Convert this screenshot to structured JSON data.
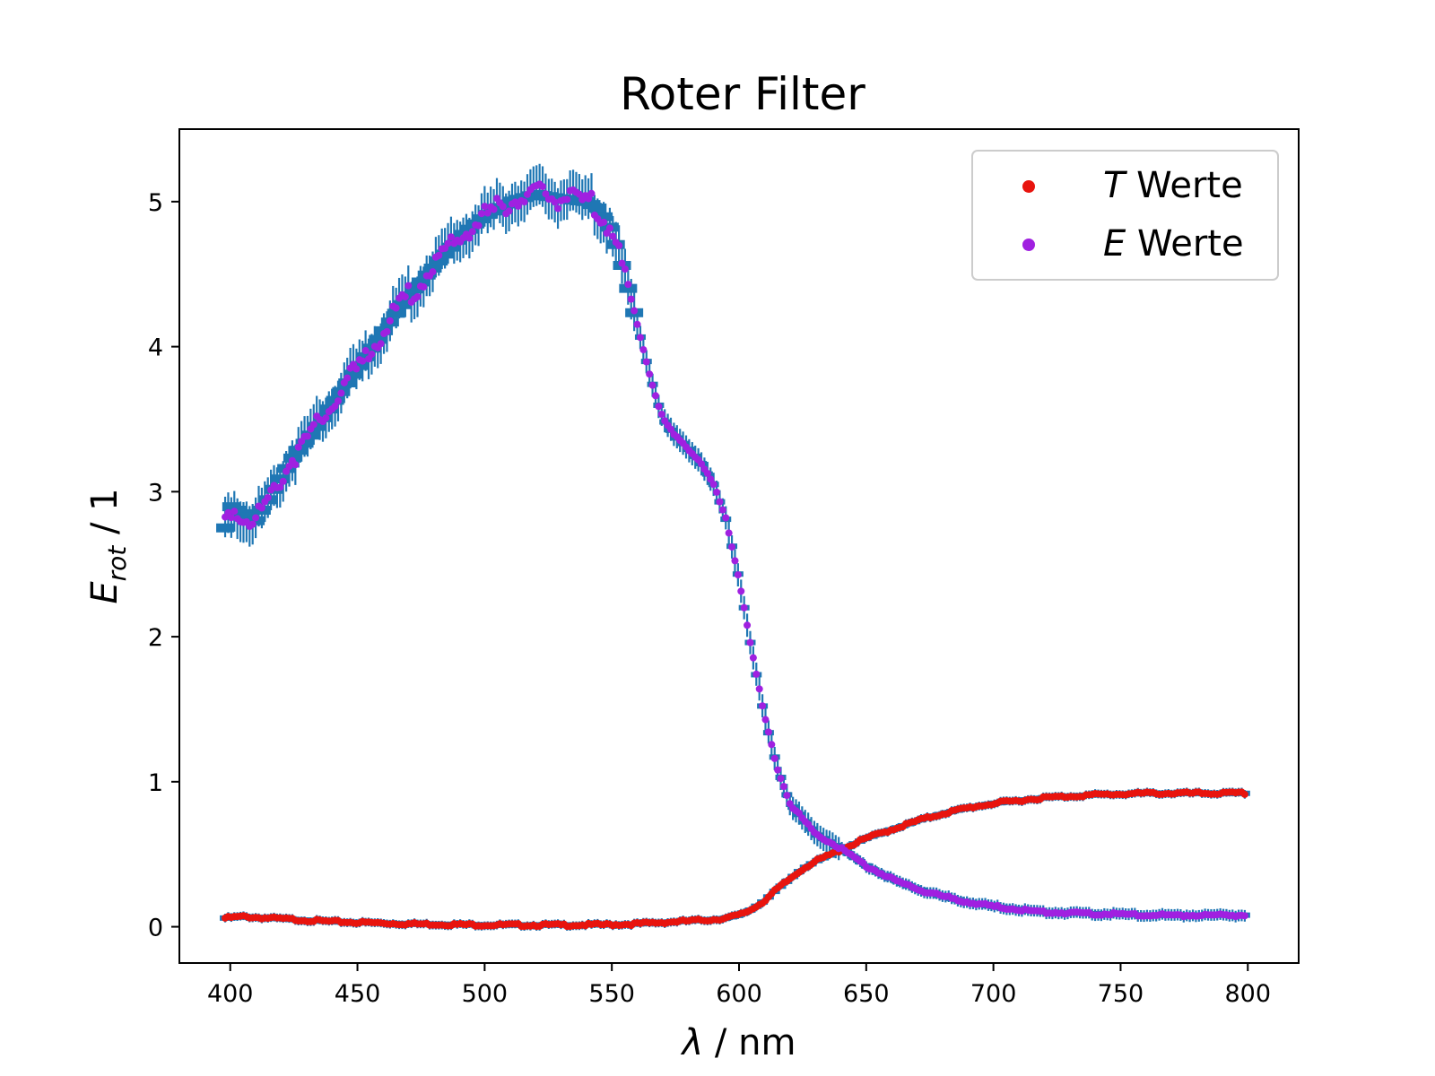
{
  "chart_data": {
    "type": "scatter",
    "title": "Roter Filter",
    "xlabel_symbol": "λ",
    "xlabel_unit": " / nm",
    "ylabel_symbol": "E",
    "ylabel_sub": "rot",
    "ylabel_unit": " / 1",
    "xlim": [
      380,
      820
    ],
    "ylim": [
      -0.25,
      5.5
    ],
    "xticks": [
      400,
      450,
      500,
      550,
      600,
      650,
      700,
      750,
      800
    ],
    "yticks": [
      0,
      1,
      2,
      3,
      4,
      5
    ],
    "grid": false,
    "legend_position": "top-right",
    "errorbar_color": "#1f77b4",
    "series": [
      {
        "name": "T Werte",
        "legend_symbol": "T",
        "legend_text": " Werte",
        "color": "#e8140e",
        "x": [
          398,
          405,
          410,
          420,
          430,
          440,
          450,
          460,
          470,
          480,
          490,
          500,
          510,
          520,
          530,
          540,
          550,
          560,
          570,
          580,
          590,
          595,
          600,
          605,
          610,
          615,
          620,
          625,
          630,
          640,
          650,
          660,
          670,
          680,
          690,
          700,
          710,
          720,
          730,
          740,
          750,
          760,
          770,
          780,
          790,
          800
        ],
        "y": [
          0.06,
          0.07,
          0.065,
          0.055,
          0.045,
          0.035,
          0.03,
          0.025,
          0.02,
          0.018,
          0.015,
          0.013,
          0.012,
          0.012,
          0.012,
          0.013,
          0.015,
          0.02,
          0.03,
          0.04,
          0.05,
          0.06,
          0.08,
          0.12,
          0.18,
          0.26,
          0.33,
          0.4,
          0.45,
          0.53,
          0.61,
          0.67,
          0.73,
          0.78,
          0.82,
          0.85,
          0.87,
          0.89,
          0.9,
          0.91,
          0.915,
          0.92,
          0.92,
          0.92,
          0.92,
          0.92
        ]
      },
      {
        "name": "E Werte",
        "legend_symbol": "E",
        "legend_text": " Werte",
        "color": "#a020e0",
        "x": [
          398,
          400,
          405,
          410,
          415,
          420,
          425,
          430,
          440,
          450,
          460,
          470,
          480,
          490,
          500,
          510,
          520,
          530,
          540,
          545,
          550,
          555,
          560,
          565,
          570,
          575,
          580,
          585,
          590,
          595,
          600,
          605,
          610,
          615,
          620,
          630,
          640,
          650,
          660,
          670,
          680,
          690,
          700,
          710,
          720,
          730,
          740,
          750,
          760,
          770,
          780,
          790,
          800
        ],
        "y": [
          2.75,
          2.9,
          2.85,
          2.8,
          2.95,
          3.1,
          3.25,
          3.35,
          3.6,
          3.85,
          4.1,
          4.35,
          4.55,
          4.75,
          4.9,
          5.0,
          5.05,
          5.02,
          5.0,
          4.95,
          4.8,
          4.5,
          4.15,
          3.8,
          3.5,
          3.38,
          3.3,
          3.2,
          3.05,
          2.8,
          2.4,
          1.9,
          1.45,
          1.1,
          0.85,
          0.64,
          0.54,
          0.42,
          0.33,
          0.26,
          0.21,
          0.17,
          0.14,
          0.12,
          0.1,
          0.095,
          0.09,
          0.085,
          0.08,
          0.08,
          0.08,
          0.08,
          0.08
        ]
      }
    ]
  }
}
